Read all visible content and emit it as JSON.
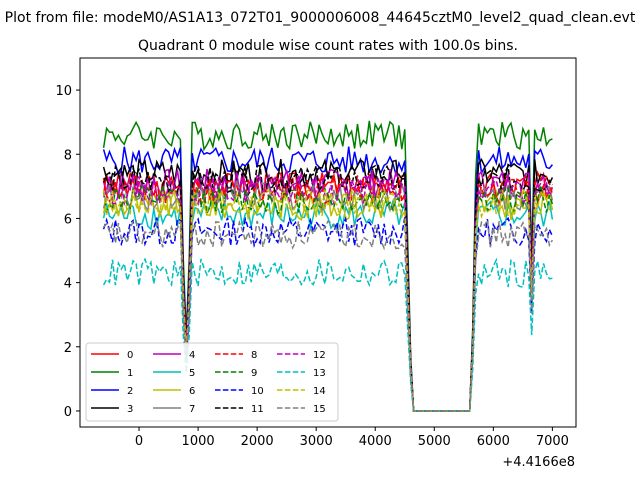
{
  "chart_data": {
    "type": "line",
    "suptitle": "Plot from file: modeM0/AS1A13_072T01_9000006008_44645cztM0_level2_quad_clean.evt",
    "title": "Quadrant 0 module wise count rates with 100.0s bins.",
    "xlabel": "",
    "ylabel": "",
    "x_offset_label": "+4.4166e8",
    "xlim": [
      -1000,
      7400
    ],
    "ylim": [
      -0.5,
      11.0
    ],
    "xticks": [
      0,
      1000,
      2000,
      3000,
      4000,
      5000,
      6000,
      7000
    ],
    "yticks": [
      0,
      2,
      4,
      6,
      8,
      10
    ],
    "grid": false,
    "legend_position": "lower left",
    "legend_columns": 4,
    "segments": [
      {
        "name": "obs1",
        "x_start": -600,
        "x_end": 700
      },
      {
        "name": "dip",
        "x": [
          750,
          800,
          850
        ],
        "factor": [
          0.55,
          0.28,
          0.55
        ]
      },
      {
        "name": "obs2",
        "x_start": 900,
        "x_end": 4500
      },
      {
        "name": "drop",
        "x": [
          4600,
          4650
        ],
        "factor": [
          0.2,
          0.0
        ]
      },
      {
        "name": "gap",
        "x_start": 4700,
        "x_end": 5600,
        "value": 0
      },
      {
        "name": "rise",
        "x": [
          5650,
          5700
        ],
        "factor": [
          0.3,
          0.85
        ]
      },
      {
        "name": "obs3",
        "x_start": 5750,
        "x_end": 6600
      },
      {
        "name": "dip2",
        "x": [
          6650
        ],
        "factor": [
          0.55
        ]
      },
      {
        "name": "obs4",
        "x_start": 6700,
        "x_end": 7000
      }
    ],
    "series": [
      {
        "name": "0",
        "color": "#ff0000",
        "dash": "solid",
        "level": 7.0
      },
      {
        "name": "1",
        "color": "#008000",
        "dash": "solid",
        "level": 8.6
      },
      {
        "name": "2",
        "color": "#0000ff",
        "dash": "solid",
        "level": 7.8
      },
      {
        "name": "3",
        "color": "#000000",
        "dash": "solid",
        "level": 7.4
      },
      {
        "name": "4",
        "color": "#bf00bf",
        "dash": "solid",
        "level": 7.1
      },
      {
        "name": "5",
        "color": "#00bfbf",
        "dash": "solid",
        "level": 6.1
      },
      {
        "name": "6",
        "color": "#bfbf00",
        "dash": "solid",
        "level": 6.4
      },
      {
        "name": "7",
        "color": "#808080",
        "dash": "solid",
        "level": 6.7
      },
      {
        "name": "8",
        "color": "#ff0000",
        "dash": "dashed",
        "level": 6.9
      },
      {
        "name": "9",
        "color": "#008000",
        "dash": "dashed",
        "level": 6.6
      },
      {
        "name": "10",
        "color": "#0000ff",
        "dash": "dashed",
        "level": 5.6
      },
      {
        "name": "11",
        "color": "#000000",
        "dash": "dashed",
        "level": 7.2
      },
      {
        "name": "12",
        "color": "#bf00bf",
        "dash": "dashed",
        "level": 6.9
      },
      {
        "name": "13",
        "color": "#00bfbf",
        "dash": "dashed",
        "level": 4.3
      },
      {
        "name": "14",
        "color": "#bfbf00",
        "dash": "dashed",
        "level": 6.5
      },
      {
        "name": "15",
        "color": "#808080",
        "dash": "dashed",
        "level": 5.5
      }
    ]
  }
}
